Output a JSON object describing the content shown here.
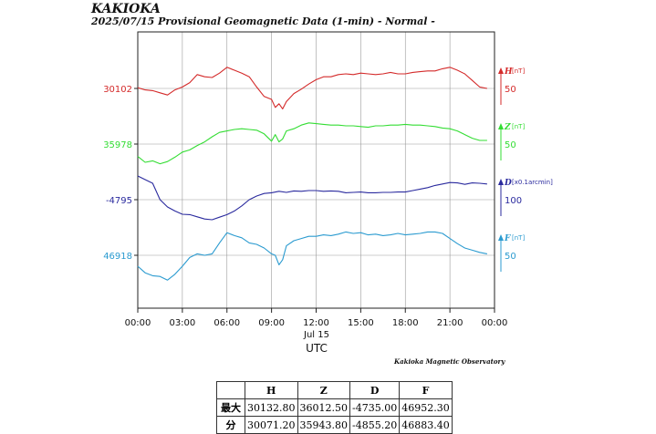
{
  "page": {
    "title": "KAKIOKA",
    "subtitle": "2025/07/15  Provisional Geomagnetic Data (1-min)  - Normal -",
    "credit": "Kakioka Magnetic Observatory"
  },
  "chart_data": {
    "type": "line",
    "x_axis": {
      "label": "UTC",
      "date_label": "Jul 15",
      "ticks": [
        "00:00",
        "03:00",
        "06:00",
        "09:00",
        "12:00",
        "15:00",
        "18:00",
        "21:00",
        "00:00"
      ],
      "xlim_hours": [
        0,
        24
      ]
    },
    "grid": true,
    "series": [
      {
        "name": "H",
        "unit": "[nT]",
        "color": "#d42a2a",
        "baseline_label": "30102",
        "baseline_value": 30102,
        "scale_label": "50",
        "scale_value": 50,
        "x": [
          0,
          0.5,
          1,
          1.5,
          2,
          2.5,
          3,
          3.5,
          4,
          4.5,
          5,
          5.5,
          6,
          6.5,
          7,
          7.5,
          8,
          8.5,
          9,
          9.25,
          9.5,
          9.75,
          10,
          10.5,
          11,
          11.5,
          12,
          12.5,
          13,
          13.5,
          14,
          14.5,
          15,
          15.5,
          16,
          16.5,
          17,
          17.5,
          18,
          18.5,
          19,
          19.5,
          20,
          20.5,
          21,
          21.5,
          22,
          22.5,
          23,
          23.5
        ],
        "values": [
          30103,
          30100,
          30099,
          30096,
          30093,
          30100,
          30104,
          30110,
          30121,
          30118,
          30117,
          30123,
          30131,
          30127,
          30123,
          30118,
          30104,
          30091,
          30087,
          30076,
          30081,
          30074,
          30084,
          30095,
          30101,
          30108,
          30114,
          30118,
          30118,
          30121,
          30122,
          30121,
          30123,
          30122,
          30121,
          30122,
          30124,
          30122,
          30122,
          30124,
          30125,
          30126,
          30126,
          30129,
          30131,
          30127,
          30122,
          30113,
          30104,
          30102
        ]
      },
      {
        "name": "Z",
        "unit": "[nT]",
        "color": "#33dd33",
        "baseline_label": "35978",
        "baseline_value": 35978,
        "scale_label": "50",
        "scale_value": 50,
        "x": [
          0,
          0.5,
          1,
          1.5,
          2,
          2.5,
          3,
          3.5,
          4,
          4.5,
          5,
          5.5,
          6,
          6.5,
          7,
          7.5,
          8,
          8.5,
          9,
          9.25,
          9.5,
          9.75,
          10,
          10.5,
          11,
          11.5,
          12,
          12.5,
          13,
          13.5,
          14,
          14.5,
          15,
          15.5,
          16,
          16.5,
          17,
          17.5,
          18,
          18.5,
          19,
          19.5,
          20,
          20.5,
          21,
          21.5,
          22,
          22.5,
          23,
          23.5
        ],
        "values": [
          35961,
          35953,
          35955,
          35951,
          35954,
          35960,
          35967,
          35970,
          35976,
          35981,
          35988,
          35994,
          35996,
          35998,
          35999,
          35998,
          35997,
          35992,
          35982,
          35991,
          35981,
          35985,
          35996,
          35999,
          36004,
          36007,
          36006,
          36005,
          36004,
          36004,
          36003,
          36003,
          36002,
          36001,
          36003,
          36003,
          36004,
          36004,
          36005,
          36004,
          36004,
          36003,
          36002,
          36000,
          35999,
          35996,
          35991,
          35986,
          35983,
          35983
        ]
      },
      {
        "name": "D",
        "unit": "[x0.1arcmin]",
        "color": "#2a2a9e",
        "baseline_label": "-4795",
        "baseline_value": -4795,
        "scale_label": "100",
        "scale_value": 100,
        "x": [
          0,
          0.5,
          1,
          1.5,
          2,
          2.5,
          3,
          3.5,
          4,
          4.5,
          5,
          5.5,
          6,
          6.5,
          7,
          7.5,
          8,
          8.5,
          9,
          9.5,
          10,
          10.5,
          11,
          11.5,
          12,
          12.5,
          13,
          13.5,
          14,
          14.5,
          15,
          15.5,
          16,
          16.5,
          17,
          17.5,
          18,
          18.5,
          19,
          19.5,
          20,
          20.5,
          21,
          21.5,
          22,
          22.5,
          23,
          23.5
        ],
        "values": [
          -4730,
          -4740,
          -4750,
          -4795,
          -4815,
          -4826,
          -4835,
          -4836,
          -4842,
          -4848,
          -4850,
          -4843,
          -4836,
          -4826,
          -4812,
          -4795,
          -4785,
          -4778,
          -4776,
          -4772,
          -4775,
          -4771,
          -4772,
          -4770,
          -4770,
          -4772,
          -4771,
          -4772,
          -4776,
          -4775,
          -4774,
          -4776,
          -4776,
          -4775,
          -4775,
          -4774,
          -4774,
          -4770,
          -4766,
          -4762,
          -4756,
          -4752,
          -4748,
          -4749,
          -4753,
          -4749,
          -4750,
          -4752
        ]
      },
      {
        "name": "F",
        "unit": "[nT]",
        "color": "#2b9bd0",
        "baseline_label": "46918",
        "baseline_value": 46918,
        "scale_label": "50",
        "scale_value": 50,
        "x": [
          0,
          0.5,
          1,
          1.5,
          2,
          2.5,
          3,
          3.5,
          4,
          4.5,
          5,
          5.5,
          6,
          6.5,
          7,
          7.5,
          8,
          8.5,
          9,
          9.25,
          9.5,
          9.75,
          10,
          10.5,
          11,
          11.5,
          12,
          12.5,
          13,
          13.5,
          14,
          14.5,
          15,
          15.5,
          16,
          16.5,
          17,
          17.5,
          18,
          18.5,
          19,
          19.5,
          20,
          20.5,
          21,
          21.5,
          22,
          22.5,
          23,
          23.5
        ],
        "values": [
          46903,
          46894,
          46890,
          46889,
          46884,
          46892,
          46903,
          46915,
          46920,
          46918,
          46920,
          46935,
          46949,
          46945,
          46942,
          46935,
          46933,
          46928,
          46920,
          46918,
          46905,
          46912,
          46931,
          46938,
          46941,
          46944,
          46944,
          46946,
          46945,
          46947,
          46950,
          46948,
          46949,
          46946,
          46947,
          46945,
          46946,
          46948,
          46946,
          46947,
          46948,
          46950,
          46950,
          46948,
          46941,
          46934,
          46928,
          46925,
          46922,
          46920
        ]
      }
    ]
  },
  "stats_table": {
    "headers": [
      "",
      "H",
      "Z",
      "D",
      "F"
    ],
    "rows": [
      {
        "label": "最大",
        "values": [
          "30132.80",
          "36012.50",
          "-4735.00",
          "46952.30"
        ]
      },
      {
        "label": "分",
        "values": [
          "30071.20",
          "35943.80",
          "-4855.20",
          "46883.40"
        ]
      }
    ]
  }
}
